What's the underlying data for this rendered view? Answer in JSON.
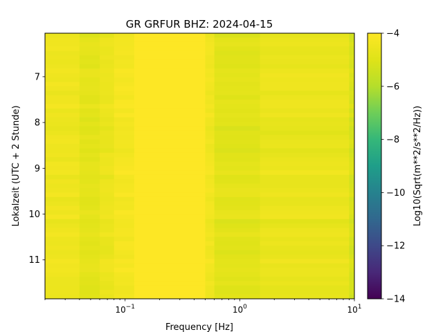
{
  "chart_data": {
    "type": "heatmap",
    "title": "GR GRFUR  BHZ: 2024-04-15",
    "xlabel": "Frequency [Hz]",
    "ylabel": "Lokalzeit (UTC + 2 Stunde)",
    "x_scale": "log",
    "xlim": [
      0.02,
      10
    ],
    "ylim": [
      11.85,
      6.05
    ],
    "x_ticks": [
      {
        "value": 0.1,
        "base": "10",
        "exp": "−1"
      },
      {
        "value": 1,
        "base": "10",
        "exp": "0"
      },
      {
        "value": 10,
        "base": "10",
        "exp": "1"
      }
    ],
    "y_ticks": [
      7,
      8,
      9,
      10,
      11
    ],
    "colorbar": {
      "label": "Log10(Sqrt(m**2/s**2/Hz))",
      "colormap": "viridis",
      "range": [
        -14,
        -4
      ],
      "ticks": [
        -4,
        -6,
        -8,
        -10,
        -12,
        -14
      ],
      "tick_labels": [
        "−4",
        "−6",
        "−8",
        "−10",
        "−12",
        "−14"
      ]
    },
    "frequency_bands": [
      {
        "from": 0.02,
        "to": 0.04,
        "value": -4.5
      },
      {
        "from": 0.04,
        "to": 0.06,
        "value": -4.85
      },
      {
        "from": 0.06,
        "to": 0.08,
        "value": -4.6
      },
      {
        "from": 0.08,
        "to": 0.12,
        "value": -4.3
      },
      {
        "from": 0.12,
        "to": 0.5,
        "value": -4.0
      },
      {
        "from": 0.5,
        "to": 0.6,
        "value": -4.4
      },
      {
        "from": 0.6,
        "to": 1.5,
        "value": -4.9
      },
      {
        "from": 1.5,
        "to": 9.0,
        "value": -4.65
      },
      {
        "from": 9.0,
        "to": 10,
        "value": -5.2
      }
    ]
  }
}
